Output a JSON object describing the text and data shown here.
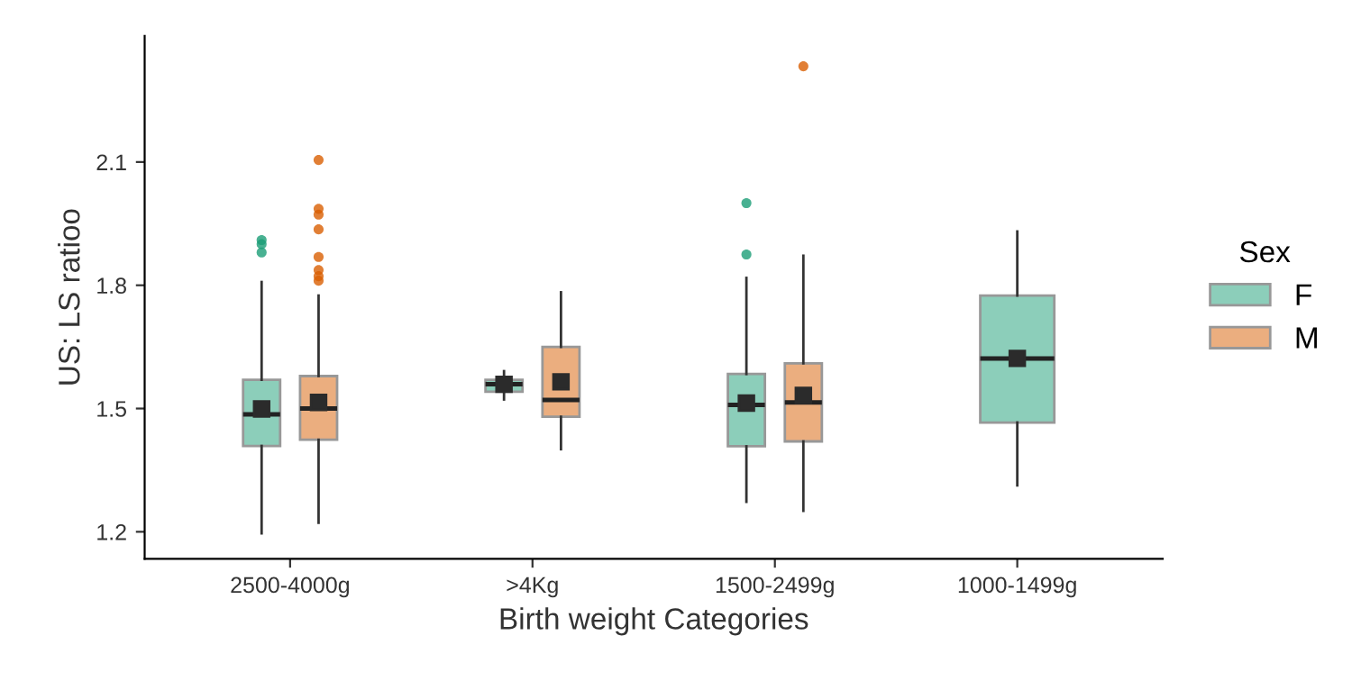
{
  "chart_data": {
    "type": "box",
    "xlabel": "Birth weight Categories",
    "ylabel": "US: LS ratioo",
    "legend_title": "Sex",
    "categories": [
      "2500-4000g",
      ">4Kg",
      "1500-2499g",
      "1000-1499g"
    ],
    "ylim": [
      1.134,
      2.407
    ],
    "yticks": [
      1.2,
      1.5,
      1.8,
      2.1
    ],
    "grid": false,
    "legend": "right",
    "series": [
      {
        "name": "F",
        "color": "#1b9e77",
        "boxes": [
          {
            "low": 1.196,
            "q1": 1.409,
            "median": 1.486,
            "q3": 1.57,
            "high": 1.808,
            "mean": 1.499,
            "outliers": [
              1.88,
              1.9,
              1.91
            ]
          },
          {
            "low": 1.522,
            "q1": 1.541,
            "median": 1.559,
            "q3": 1.57,
            "high": 1.591,
            "mean": 1.559
          },
          {
            "low": 1.273,
            "q1": 1.408,
            "median": 1.509,
            "q3": 1.584,
            "high": 1.818,
            "mean": 1.513,
            "outliers": [
              1.875,
              2.0
            ]
          },
          {
            "low": 1.313,
            "q1": 1.466,
            "median": 1.622,
            "q3": 1.775,
            "high": 1.931,
            "mean": 1.622
          }
        ]
      },
      {
        "name": "M",
        "color": "#d95f02",
        "boxes": [
          {
            "low": 1.222,
            "q1": 1.424,
            "median": 1.5,
            "q3": 1.579,
            "high": 1.775,
            "mean": 1.515,
            "outliers": [
              1.811,
              1.822,
              1.837,
              1.869,
              1.936,
              1.972,
              1.986,
              2.105
            ]
          },
          {
            "low": 1.401,
            "q1": 1.48,
            "median": 1.521,
            "q3": 1.65,
            "high": 1.783,
            "mean": 1.565
          },
          {
            "low": 1.251,
            "q1": 1.42,
            "median": 1.515,
            "q3": 1.61,
            "high": 1.872,
            "mean": 1.532,
            "outliers": [
              2.333
            ]
          },
          null
        ]
      }
    ]
  }
}
